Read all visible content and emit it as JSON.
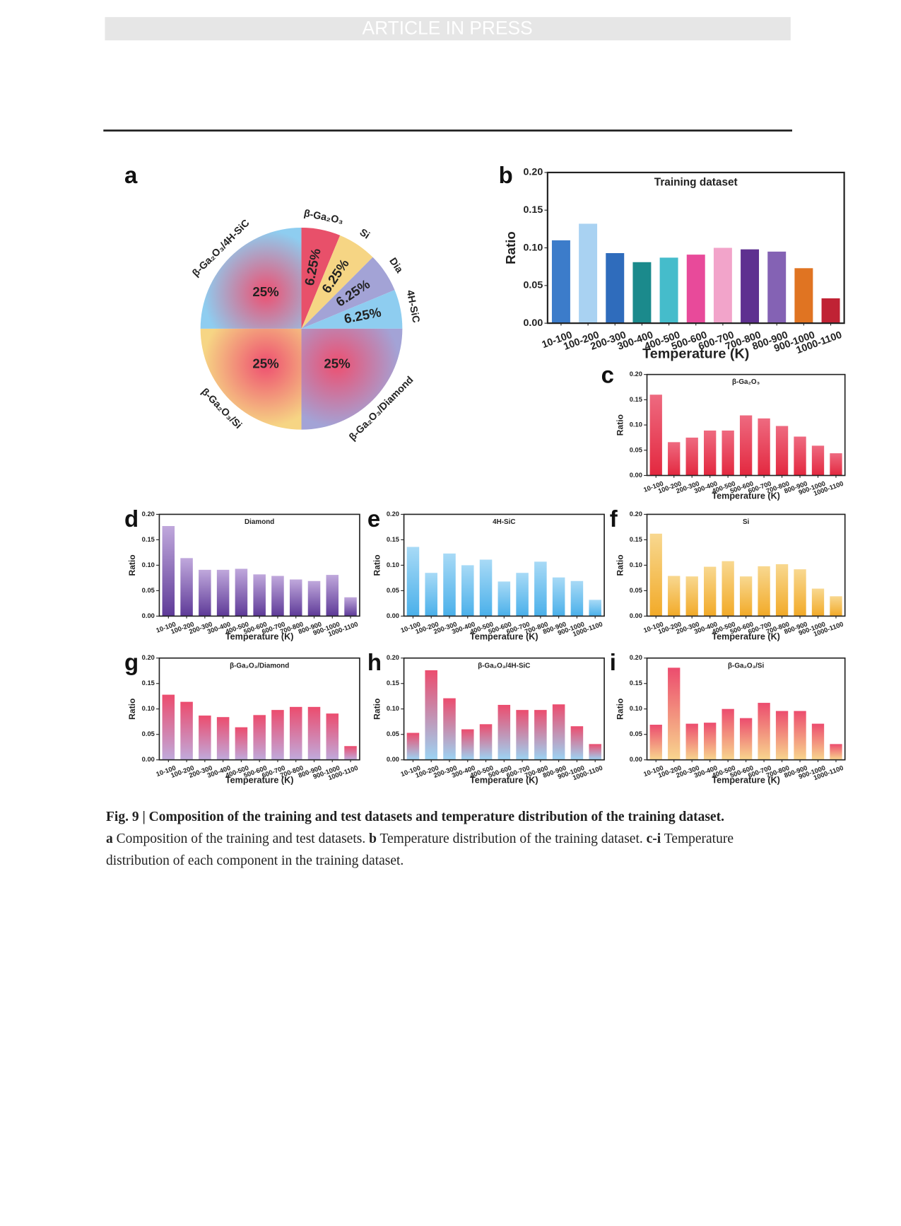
{
  "header": {
    "text": "ARTICLE IN PRESS"
  },
  "chart_data": [
    {
      "type": "pie",
      "panel": "a",
      "categories": [
        "β-Ga₂O₃",
        "Si",
        "Dia",
        "4H-SiC",
        "β-Ga₂O₃/Diamond",
        "β-Ga₂O₃/Si",
        "β-Ga₂O₃/4H-SiC"
      ],
      "values": [
        6.25,
        6.25,
        6.25,
        6.25,
        25,
        25,
        25
      ],
      "value_labels": [
        "6.25%",
        "6.25%",
        "6.25%",
        "6.25%",
        "25%",
        "25%",
        "25%"
      ],
      "colors": [
        "#e8506a",
        "#f6d584",
        "#a3a3d6",
        "#8ecdf0",
        "#a3a3d6",
        "#f6d584",
        "#8ecdf0"
      ],
      "gradient": [
        false,
        false,
        false,
        false,
        true,
        true,
        true
      ],
      "gradient_color": "#ee4f70"
    },
    {
      "type": "bar",
      "panel": "b",
      "title": "Training dataset",
      "xlabel": "Temperature (K)",
      "ylabel": "Ratio",
      "categories": [
        "10-100",
        "100-200",
        "200-300",
        "300-400",
        "400-500",
        "500-600",
        "600-700",
        "700-800",
        "800-900",
        "900-1000",
        "1000-1100"
      ],
      "values": [
        0.11,
        0.132,
        0.093,
        0.081,
        0.087,
        0.091,
        0.1,
        0.098,
        0.095,
        0.073,
        0.033
      ],
      "colors": [
        "#3c7cca",
        "#a9d2f2",
        "#2f6cbc",
        "#1b8a8c",
        "#45bccb",
        "#e84a9a",
        "#f2a4ca",
        "#5e3090",
        "#8462b4",
        "#e07422",
        "#c02234"
      ],
      "ylim": [
        0,
        0.2
      ],
      "yticks": [
        {
          "value": 0,
          "label": "0.00"
        },
        {
          "value": 0.05,
          "label": "0.05"
        },
        {
          "value": 0.1,
          "label": "0.10"
        },
        {
          "value": 0.15,
          "label": "0.15"
        },
        {
          "value": 0.2,
          "label": "0.20"
        }
      ]
    },
    {
      "type": "bar",
      "panel": "c",
      "title": "β-Ga₂O₃",
      "xlabel": "Temperature (K)",
      "ylabel": "Ratio",
      "categories": [
        "10-100",
        "100-200",
        "200-300",
        "300-400",
        "400-500",
        "500-600",
        "600-700",
        "700-800",
        "800-900",
        "900-1000",
        "1000-1100"
      ],
      "values": [
        0.16,
        0.066,
        0.075,
        0.089,
        0.089,
        0.119,
        0.113,
        0.098,
        0.077,
        0.059,
        0.044
      ],
      "gradient": [
        "#ee6a80",
        "#e3283f"
      ],
      "ylim": [
        0,
        0.2
      ],
      "yticks": [
        {
          "value": 0,
          "label": "0.00"
        },
        {
          "value": 0.05,
          "label": "0.05"
        },
        {
          "value": 0.1,
          "label": "0.10"
        },
        {
          "value": 0.15,
          "label": "0.15"
        },
        {
          "value": 0.2,
          "label": "0.20"
        }
      ]
    },
    {
      "type": "bar",
      "panel": "d",
      "title": "Diamond",
      "xlabel": "Temperature (K)",
      "ylabel": "Ratio",
      "categories": [
        "10-100",
        "100-200",
        "200-300",
        "300-400",
        "400-500",
        "500-600",
        "600-700",
        "700-800",
        "800-900",
        "900-1000",
        "1000-1100"
      ],
      "values": [
        0.177,
        0.114,
        0.091,
        0.091,
        0.093,
        0.082,
        0.079,
        0.072,
        0.069,
        0.081,
        0.037
      ],
      "gradient": [
        "#c0a8dc",
        "#5e3a98"
      ],
      "ylim": [
        0,
        0.2
      ],
      "yticks": [
        {
          "value": 0,
          "label": "0.00"
        },
        {
          "value": 0.05,
          "label": "0.05"
        },
        {
          "value": 0.1,
          "label": "0.10"
        },
        {
          "value": 0.15,
          "label": "0.15"
        },
        {
          "value": 0.2,
          "label": "0.20"
        }
      ]
    },
    {
      "type": "bar",
      "panel": "e",
      "title": "4H-SiC",
      "xlabel": "Temperature (K)",
      "ylabel": "Ratio",
      "categories": [
        "10-100",
        "100-200",
        "200-300",
        "300-400",
        "400-500",
        "500-600",
        "600-700",
        "700-800",
        "800-900",
        "900-1000",
        "1000-1100"
      ],
      "values": [
        0.136,
        0.085,
        0.123,
        0.1,
        0.111,
        0.068,
        0.085,
        0.107,
        0.076,
        0.069,
        0.032
      ],
      "gradient": [
        "#a8daf6",
        "#4ab0ea"
      ],
      "ylim": [
        0,
        0.2
      ],
      "yticks": [
        {
          "value": 0,
          "label": "0.00"
        },
        {
          "value": 0.05,
          "label": "0.05"
        },
        {
          "value": 0.1,
          "label": "0.10"
        },
        {
          "value": 0.15,
          "label": "0.15"
        },
        {
          "value": 0.2,
          "label": "0.20"
        }
      ]
    },
    {
      "type": "bar",
      "panel": "f",
      "title": "Si",
      "xlabel": "Temperature (K)",
      "ylabel": "Ratio",
      "categories": [
        "10-100",
        "100-200",
        "200-300",
        "300-400",
        "400-500",
        "500-600",
        "600-700",
        "700-800",
        "800-900",
        "900-1000",
        "1000-1100"
      ],
      "values": [
        0.162,
        0.079,
        0.078,
        0.097,
        0.108,
        0.078,
        0.098,
        0.102,
        0.092,
        0.054,
        0.039
      ],
      "gradient": [
        "#f8d890",
        "#f2aa28"
      ],
      "ylim": [
        0,
        0.2
      ],
      "yticks": [
        {
          "value": 0,
          "label": "0.00"
        },
        {
          "value": 0.05,
          "label": "0.05"
        },
        {
          "value": 0.1,
          "label": "0.10"
        },
        {
          "value": 0.15,
          "label": "0.15"
        },
        {
          "value": 0.2,
          "label": "0.20"
        }
      ]
    },
    {
      "type": "bar",
      "panel": "g",
      "title": "β-Ga₂O₃/Diamond",
      "xlabel": "Temperature (K)",
      "ylabel": "Ratio",
      "categories": [
        "10-100",
        "100-200",
        "200-300",
        "300-400",
        "400-500",
        "500-600",
        "600-700",
        "700-800",
        "800-900",
        "900-1000",
        "1000-1100"
      ],
      "values": [
        0.128,
        0.114,
        0.087,
        0.084,
        0.064,
        0.088,
        0.098,
        0.104,
        0.104,
        0.091,
        0.027
      ],
      "gradient": [
        "#ec4c6e",
        "#c0aadc"
      ],
      "ylim": [
        0,
        0.2
      ],
      "yticks": [
        {
          "value": 0,
          "label": "0.00"
        },
        {
          "value": 0.05,
          "label": "0.05"
        },
        {
          "value": 0.1,
          "label": "0.10"
        },
        {
          "value": 0.15,
          "label": "0.15"
        },
        {
          "value": 0.2,
          "label": "0.20"
        }
      ]
    },
    {
      "type": "bar",
      "panel": "h",
      "title": "β-Ga₂O₃/4H-SiC",
      "xlabel": "Temperature (K)",
      "ylabel": "Ratio",
      "categories": [
        "10-100",
        "100-200",
        "200-300",
        "300-400",
        "400-500",
        "500-600",
        "600-700",
        "700-800",
        "800-900",
        "900-1000",
        "1000-1100"
      ],
      "values": [
        0.053,
        0.176,
        0.121,
        0.06,
        0.07,
        0.108,
        0.098,
        0.098,
        0.109,
        0.066,
        0.031
      ],
      "gradient": [
        "#ec4c6e",
        "#9cd4f4"
      ],
      "ylim": [
        0,
        0.2
      ],
      "yticks": [
        {
          "value": 0,
          "label": "0.00"
        },
        {
          "value": 0.05,
          "label": "0.05"
        },
        {
          "value": 0.1,
          "label": "0.10"
        },
        {
          "value": 0.15,
          "label": "0.15"
        },
        {
          "value": 0.2,
          "label": "0.20"
        }
      ]
    },
    {
      "type": "bar",
      "panel": "i",
      "title": "β-Ga₂O₃/Si",
      "xlabel": "Temperature (K)",
      "ylabel": "Ratio",
      "categories": [
        "10-100",
        "100-200",
        "200-300",
        "300-400",
        "400-500",
        "500-600",
        "600-700",
        "700-800",
        "800-900",
        "900-1000",
        "1000-1100"
      ],
      "values": [
        0.069,
        0.181,
        0.071,
        0.073,
        0.1,
        0.082,
        0.112,
        0.096,
        0.096,
        0.071,
        0.031
      ],
      "gradient": [
        "#ec4c6e",
        "#f8d68e"
      ],
      "ylim": [
        0,
        0.2
      ],
      "yticks": [
        {
          "value": 0,
          "label": "0.00"
        },
        {
          "value": 0.05,
          "label": "0.05"
        },
        {
          "value": 0.1,
          "label": "0.10"
        },
        {
          "value": 0.15,
          "label": "0.15"
        },
        {
          "value": 0.2,
          "label": "0.20"
        }
      ]
    }
  ],
  "caption": {
    "title": "Fig. 9 | Composition of the training and test datasets and temperature distribution of the training dataset.",
    "parts": [
      {
        "label": "a",
        "text": "Composition of the training and test datasets."
      },
      {
        "label": "b",
        "text": "Temperature distribution of the training dataset."
      },
      {
        "label": "c-i",
        "text": "Temperature distribution of each component in the training dataset."
      }
    ]
  }
}
